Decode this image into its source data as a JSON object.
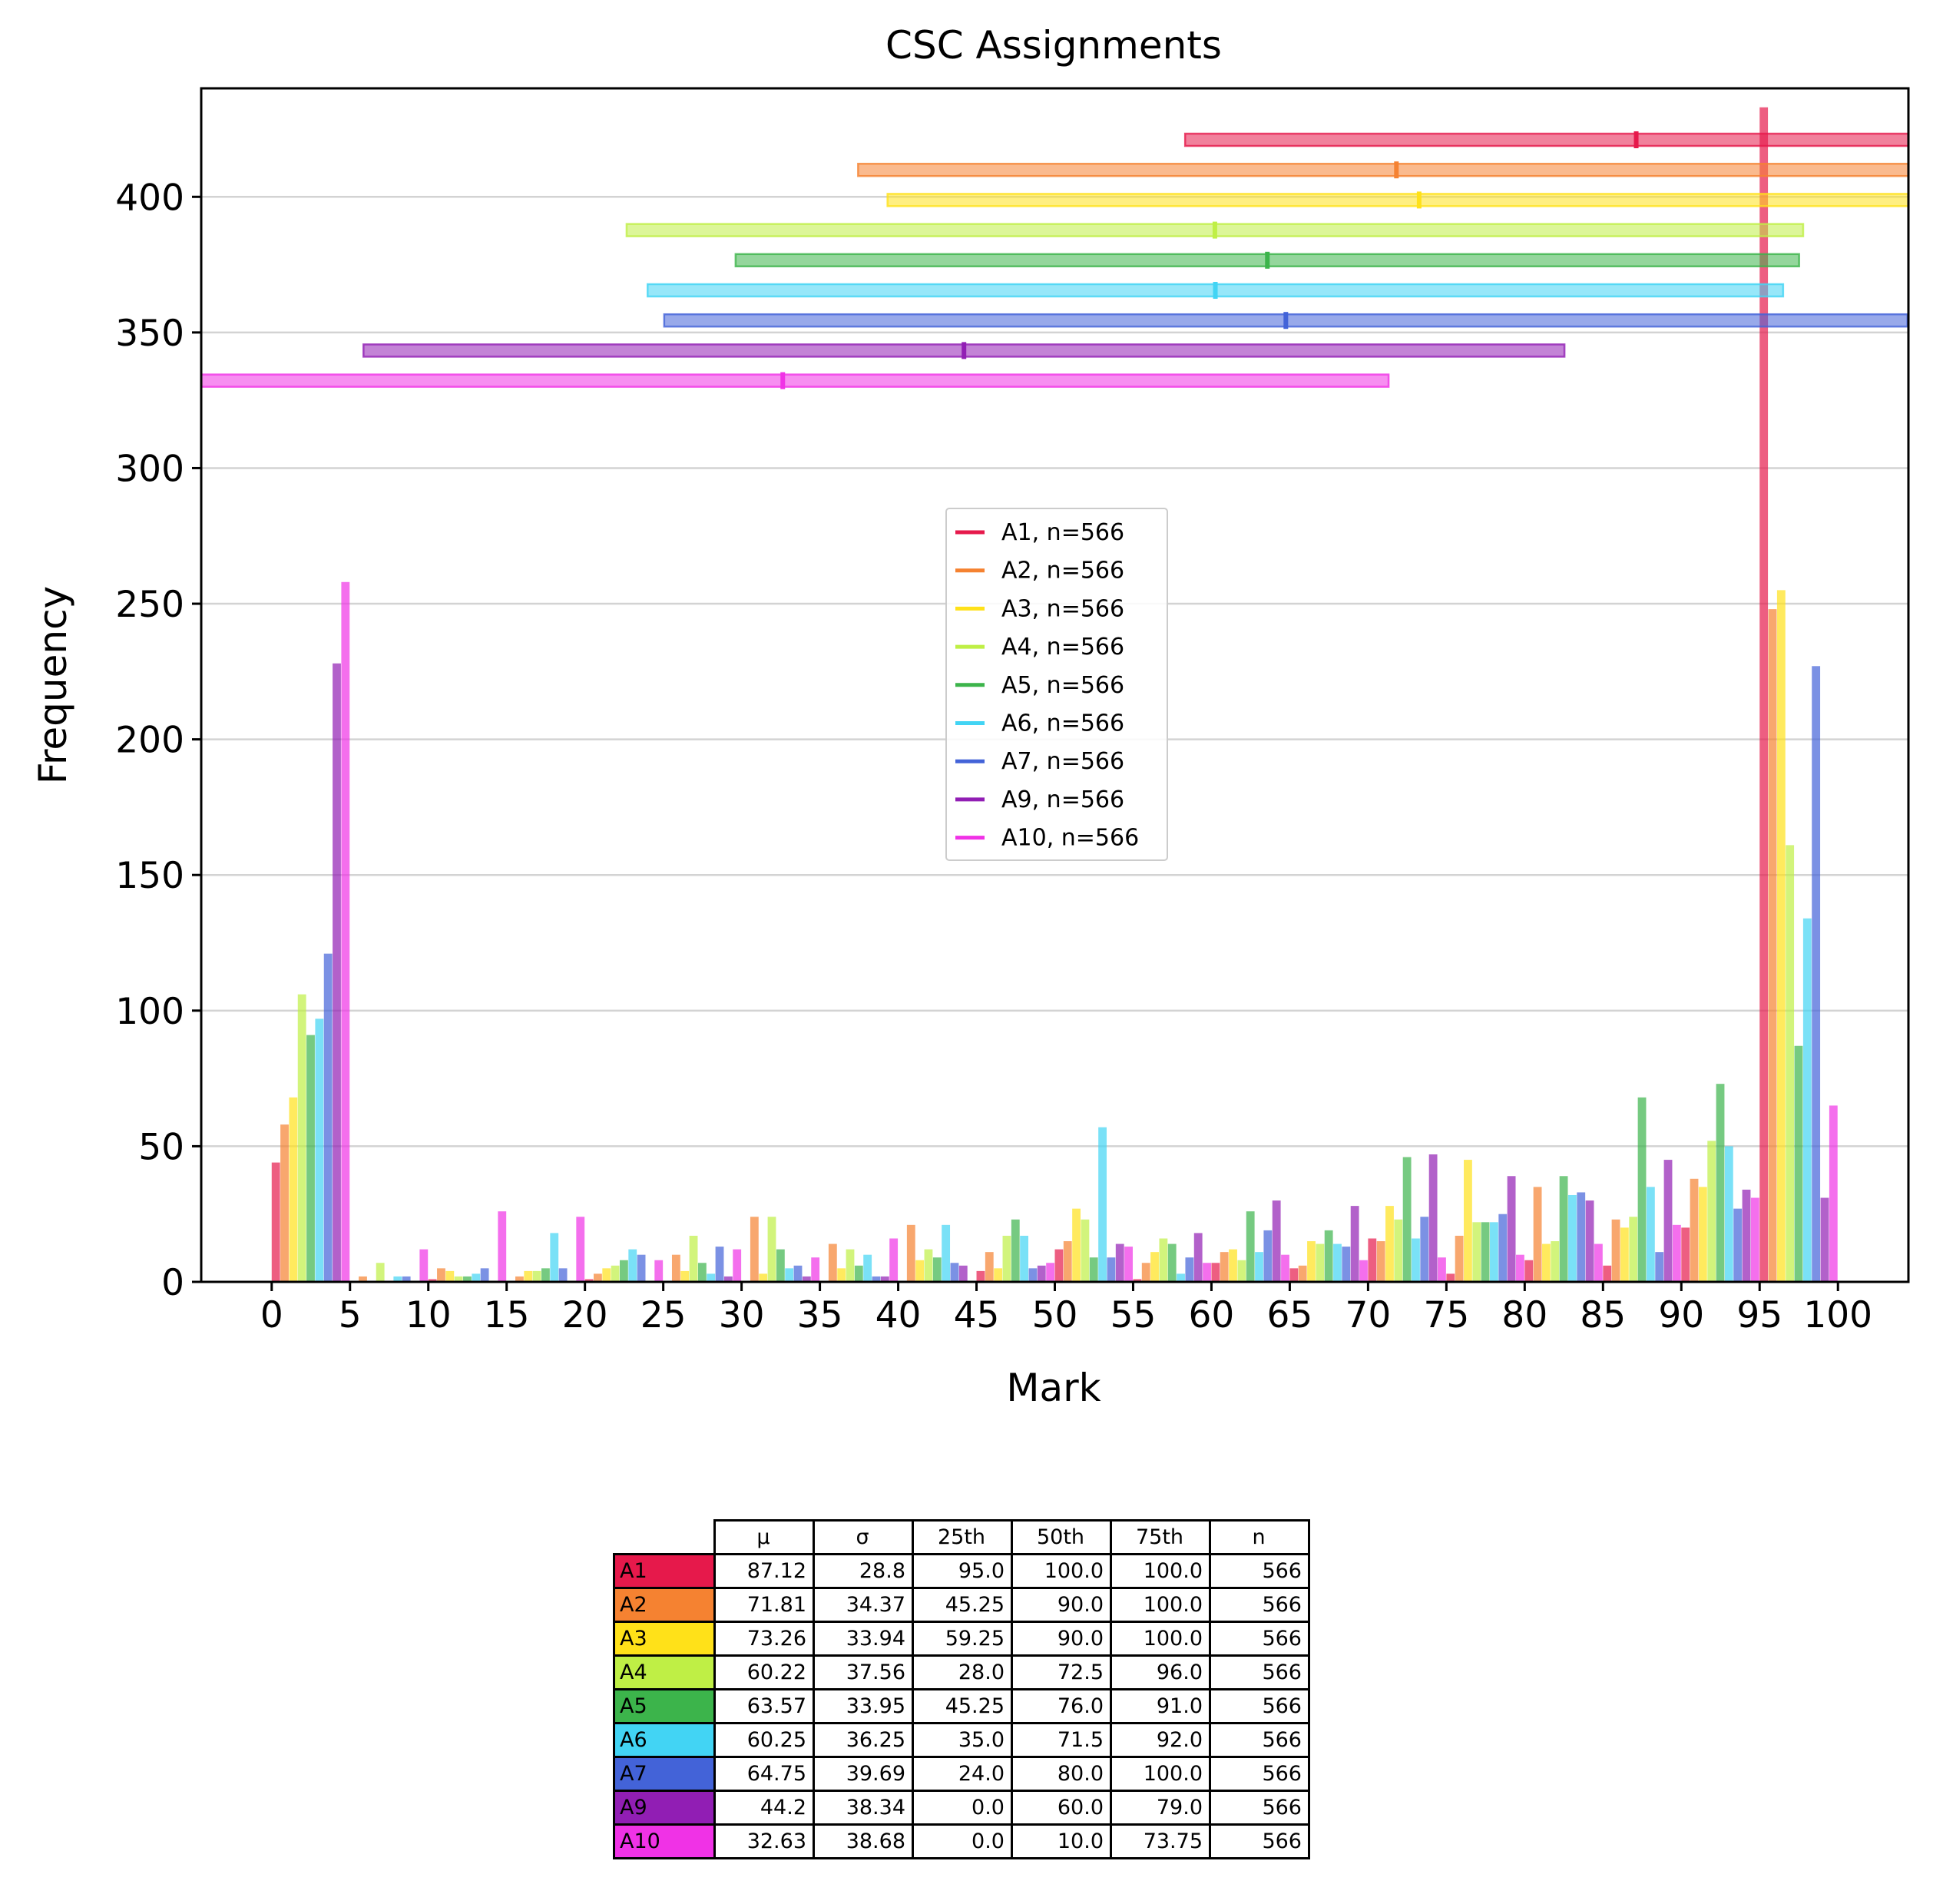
{
  "chart_data": {
    "type": "bar",
    "title": "CSC Assignments",
    "xlabel": "Mark",
    "ylabel": "Frequency",
    "xlim": [
      -4.5,
      104.5
    ],
    "ylim": [
      0,
      440
    ],
    "xticks": [
      0,
      5,
      10,
      15,
      20,
      25,
      30,
      35,
      40,
      45,
      50,
      55,
      60,
      65,
      70,
      75,
      80,
      85,
      90,
      95,
      100
    ],
    "yticks": [
      0,
      50,
      100,
      150,
      200,
      250,
      300,
      350,
      400
    ],
    "grid": "horizontal",
    "legend_position": "center",
    "bins": [
      0,
      5,
      10,
      15,
      20,
      25,
      30,
      35,
      40,
      45,
      50,
      55,
      60,
      65,
      70,
      75,
      80,
      85,
      90,
      95
    ],
    "series": [
      {
        "name": "A1, n=566",
        "label": "A1",
        "color": "#e6194b",
        "values": [
          44,
          0,
          1,
          0,
          1,
          0,
          0,
          0,
          0,
          4,
          12,
          1,
          7,
          5,
          16,
          3,
          8,
          6,
          20,
          433
        ],
        "mean": 87.12,
        "std": 28.8,
        "p25": 95.0,
        "p50": 100.0,
        "p75": 100.0,
        "n": 566
      },
      {
        "name": "A2, n=566",
        "label": "A2",
        "color": "#f58231",
        "values": [
          58,
          2,
          5,
          2,
          3,
          10,
          24,
          14,
          21,
          11,
          15,
          7,
          11,
          6,
          15,
          17,
          35,
          23,
          38,
          248
        ],
        "mean": 71.81,
        "std": 34.37,
        "p25": 45.25,
        "p50": 90.0,
        "p75": 100.0,
        "n": 566
      },
      {
        "name": "A3, n=566",
        "label": "A3",
        "color": "#ffe119",
        "values": [
          68,
          0,
          4,
          4,
          5,
          4,
          3,
          5,
          8,
          5,
          27,
          11,
          12,
          15,
          28,
          45,
          14,
          20,
          35,
          255
        ],
        "mean": 73.26,
        "std": 33.94,
        "p25": 59.25,
        "p50": 90.0,
        "p75": 100.0,
        "n": 566
      },
      {
        "name": "A4, n=566",
        "label": "A4",
        "color": "#bfef45",
        "values": [
          106,
          7,
          2,
          4,
          6,
          17,
          24,
          12,
          12,
          17,
          23,
          16,
          8,
          14,
          23,
          22,
          15,
          24,
          52,
          161
        ],
        "mean": 60.22,
        "std": 37.56,
        "p25": 28.0,
        "p50": 72.5,
        "p75": 96.0,
        "n": 566
      },
      {
        "name": "A5, n=566",
        "label": "A5",
        "color": "#3cb44b",
        "values": [
          91,
          0,
          2,
          5,
          8,
          7,
          12,
          6,
          9,
          23,
          9,
          14,
          26,
          19,
          46,
          22,
          39,
          68,
          73,
          87
        ],
        "mean": 63.57,
        "std": 33.95,
        "p25": 45.25,
        "p50": 76.0,
        "p75": 91.0,
        "n": 566
      },
      {
        "name": "A6, n=566",
        "label": "A6",
        "color": "#42d4f4",
        "values": [
          97,
          2,
          3,
          18,
          12,
          3,
          5,
          10,
          21,
          17,
          57,
          3,
          11,
          14,
          16,
          22,
          32,
          35,
          50,
          134
        ],
        "mean": 60.25,
        "std": 36.25,
        "p25": 35.0,
        "p50": 71.5,
        "p75": 92.0,
        "n": 566
      },
      {
        "name": "A7, n=566",
        "label": "A7",
        "color": "#4363d8",
        "values": [
          121,
          2,
          5,
          5,
          10,
          13,
          6,
          2,
          7,
          5,
          9,
          9,
          19,
          13,
          24,
          25,
          33,
          11,
          27,
          227
        ],
        "mean": 64.75,
        "std": 39.69,
        "p25": 24.0,
        "p50": 80.0,
        "p75": 100.0,
        "n": 566
      },
      {
        "name": "A9, n=566",
        "label": "A9",
        "color": "#911eb4",
        "values": [
          228,
          0,
          0,
          0,
          0,
          2,
          2,
          2,
          6,
          6,
          14,
          18,
          30,
          28,
          47,
          39,
          30,
          45,
          34,
          31
        ],
        "mean": 44.2,
        "std": 38.34,
        "p25": 0.0,
        "p50": 60.0,
        "p75": 79.0,
        "n": 566
      },
      {
        "name": "A10, n=566",
        "label": "A10",
        "color": "#f032e6",
        "values": [
          258,
          12,
          26,
          24,
          8,
          12,
          9,
          16,
          0,
          7,
          13,
          7,
          10,
          8,
          9,
          10,
          14,
          21,
          31,
          65
        ],
        "mean": 32.63,
        "std": 38.68,
        "p25": 0.0,
        "p50": 10.0,
        "p75": 73.75,
        "n": 566
      }
    ],
    "table": {
      "col_labels": [
        "μ",
        "σ",
        "25th",
        "50th",
        "75th",
        "n"
      ],
      "rows": [
        {
          "label": "A1",
          "cells": [
            "87.12",
            "28.8",
            "95.0",
            "100.0",
            "100.0",
            "566"
          ]
        },
        {
          "label": "A2",
          "cells": [
            "71.81",
            "34.37",
            "45.25",
            "90.0",
            "100.0",
            "566"
          ]
        },
        {
          "label": "A3",
          "cells": [
            "73.26",
            "33.94",
            "59.25",
            "90.0",
            "100.0",
            "566"
          ]
        },
        {
          "label": "A4",
          "cells": [
            "60.22",
            "37.56",
            "28.0",
            "72.5",
            "96.0",
            "566"
          ]
        },
        {
          "label": "A5",
          "cells": [
            "63.57",
            "33.95",
            "45.25",
            "76.0",
            "91.0",
            "566"
          ]
        },
        {
          "label": "A6",
          "cells": [
            "60.25",
            "36.25",
            "35.0",
            "71.5",
            "92.0",
            "566"
          ]
        },
        {
          "label": "A7",
          "cells": [
            "64.75",
            "39.69",
            "24.0",
            "80.0",
            "100.0",
            "566"
          ]
        },
        {
          "label": "A9",
          "cells": [
            "44.2",
            "38.34",
            "0.0",
            "60.0",
            "79.0",
            "566"
          ]
        },
        {
          "label": "A10",
          "cells": [
            "32.63",
            "38.68",
            "0.0",
            "10.0",
            "73.75",
            "566"
          ]
        }
      ]
    }
  }
}
